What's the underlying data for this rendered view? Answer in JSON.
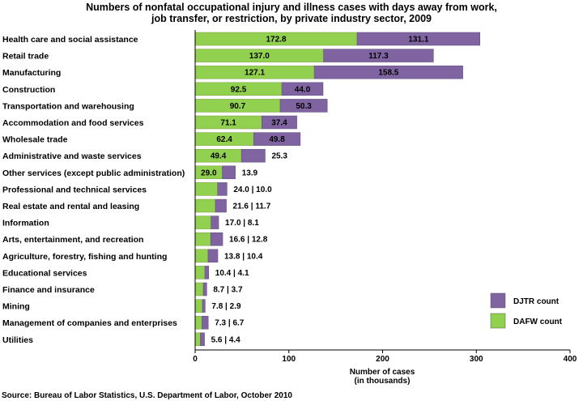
{
  "chart_data": {
    "type": "bar",
    "orientation": "horizontal",
    "stacked": true,
    "title_lines": [
      "Numbers of nonfatal occupational injury and illness cases with days away from work,",
      "job transfer, or restriction, by private industry sector, 2009"
    ],
    "categories": [
      "Health care and social assistance",
      "Retail trade",
      "Manufacturing",
      "Construction",
      "Transportation and warehousing",
      "Accommodation and food services",
      "Wholesale trade",
      "Administrative and waste services",
      "Other services (except public administration)",
      "Professional and technical services",
      "Real estate and rental and leasing",
      "Information",
      "Arts, entertainment, and recreation",
      "Agriculture, forestry, fishing and hunting",
      "Educational services",
      "Finance and insurance",
      "Mining",
      "Management of companies and enterprises",
      "Utilities"
    ],
    "series": [
      {
        "name": "DAFW count",
        "color": "#92d050",
        "values": [
          172.8,
          137.0,
          127.1,
          92.5,
          90.7,
          71.1,
          62.4,
          49.4,
          29.0,
          24.0,
          21.6,
          17.0,
          16.6,
          13.8,
          10.4,
          8.7,
          7.8,
          7.3,
          5.6
        ]
      },
      {
        "name": "DJTR count",
        "color": "#8064a2",
        "values": [
          131.1,
          117.3,
          158.5,
          44.0,
          50.3,
          37.4,
          49.8,
          25.3,
          13.9,
          10.0,
          11.7,
          8.1,
          12.8,
          10.4,
          4.1,
          3.7,
          2.9,
          6.7,
          4.4
        ]
      }
    ],
    "data_labels": [
      {
        "inside": [
          "172.8",
          "131.1"
        ],
        "outside": null
      },
      {
        "inside": [
          "137.0",
          "117.3"
        ],
        "outside": null
      },
      {
        "inside": [
          "127.1",
          "158.5"
        ],
        "outside": null
      },
      {
        "inside": [
          "92.5",
          "44.0"
        ],
        "outside": null
      },
      {
        "inside": [
          "90.7",
          "50.3"
        ],
        "outside": null
      },
      {
        "inside": [
          "71.1",
          "37.4"
        ],
        "outside": null
      },
      {
        "inside": [
          "62.4",
          "49.8"
        ],
        "outside": null
      },
      {
        "inside": [
          "49.4"
        ],
        "outside": "25.3"
      },
      {
        "inside": [
          "29.0"
        ],
        "outside": "13.9"
      },
      {
        "inside": [],
        "outside": "24.0 | 10.0"
      },
      {
        "inside": [],
        "outside": "21.6 | 11.7"
      },
      {
        "inside": [],
        "outside": "17.0 | 8.1"
      },
      {
        "inside": [],
        "outside": "16.6 | 12.8"
      },
      {
        "inside": [],
        "outside": "13.8 | 10.4"
      },
      {
        "inside": [],
        "outside": "10.4 | 4.1"
      },
      {
        "inside": [],
        "outside": "8.7 | 3.7"
      },
      {
        "inside": [],
        "outside": "7.8 | 2.9"
      },
      {
        "inside": [],
        "outside": "7.3 | 6.7"
      },
      {
        "inside": [],
        "outside": "5.6 | 4.4"
      }
    ],
    "xlim": [
      0,
      400
    ],
    "xticks": [
      0,
      100,
      200,
      300,
      400
    ],
    "xlabel_lines": [
      "Number of cases",
      "(in thousands)"
    ],
    "legend": {
      "placement": "bottom-right",
      "order": [
        "DJTR count",
        "DAFW count"
      ]
    },
    "grid": false
  },
  "source": "Source:  Bureau of Labor Statistics, U.S. Department of Labor, October 2010"
}
